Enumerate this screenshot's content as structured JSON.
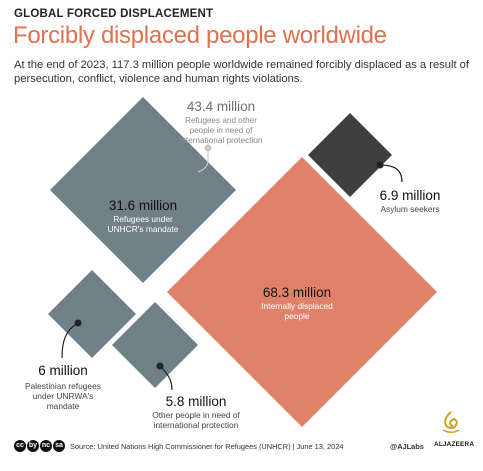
{
  "header": {
    "kicker": "GLOBAL FORCED DISPLACEMENT",
    "title": "Forcibly displaced people worldwide",
    "subtitle": "At the end of 2023, 117.3 million people worldwide remained forcibly displaced as a result of persecution, conflict, violence and human rights violations."
  },
  "chart_data": {
    "type": "area",
    "title": "Forcibly displaced people worldwide",
    "unit": "million",
    "groups": [
      {
        "value": 43.4,
        "value_label": "43.4 million",
        "description": [
          "Refugees and other",
          "people in need of",
          "international protection"
        ],
        "components": [
          {
            "value": 31.6,
            "value_label": "31.6 million",
            "description": [
              "Refugees under",
              "UNHCR's mandate"
            ],
            "color": "#717f87"
          },
          {
            "value": 6.0,
            "value_label": "6 million",
            "description": [
              "Palestinian refugees",
              "under UNRWA's",
              "mandate"
            ],
            "color": "#717f87"
          },
          {
            "value": 5.8,
            "value_label": "5.8 million",
            "description": [
              "Other people in need of",
              "international protection"
            ],
            "color": "#717f87"
          }
        ]
      }
    ],
    "standalone": [
      {
        "value": 68.3,
        "value_label": "68.3 million",
        "description": [
          "Internally displaced",
          "people"
        ],
        "color": "#e0826a"
      },
      {
        "value": 6.9,
        "value_label": "6.9 million",
        "description": [
          "Asylum seekers"
        ],
        "color": "#3f3f3f"
      }
    ]
  },
  "footer": {
    "cc_icons": [
      "cc",
      "by",
      "nc",
      "sa"
    ],
    "source": "Source: United Nations High Commissioner for Refugees (UNHCR) | June 13, 2024",
    "credit": "@AJLabs",
    "logo_text": "ALJAZEERA"
  },
  "colors": {
    "accent": "#e0714f",
    "grey": "#717f87",
    "dark": "#3f3f3f",
    "idp": "#e0826a"
  }
}
